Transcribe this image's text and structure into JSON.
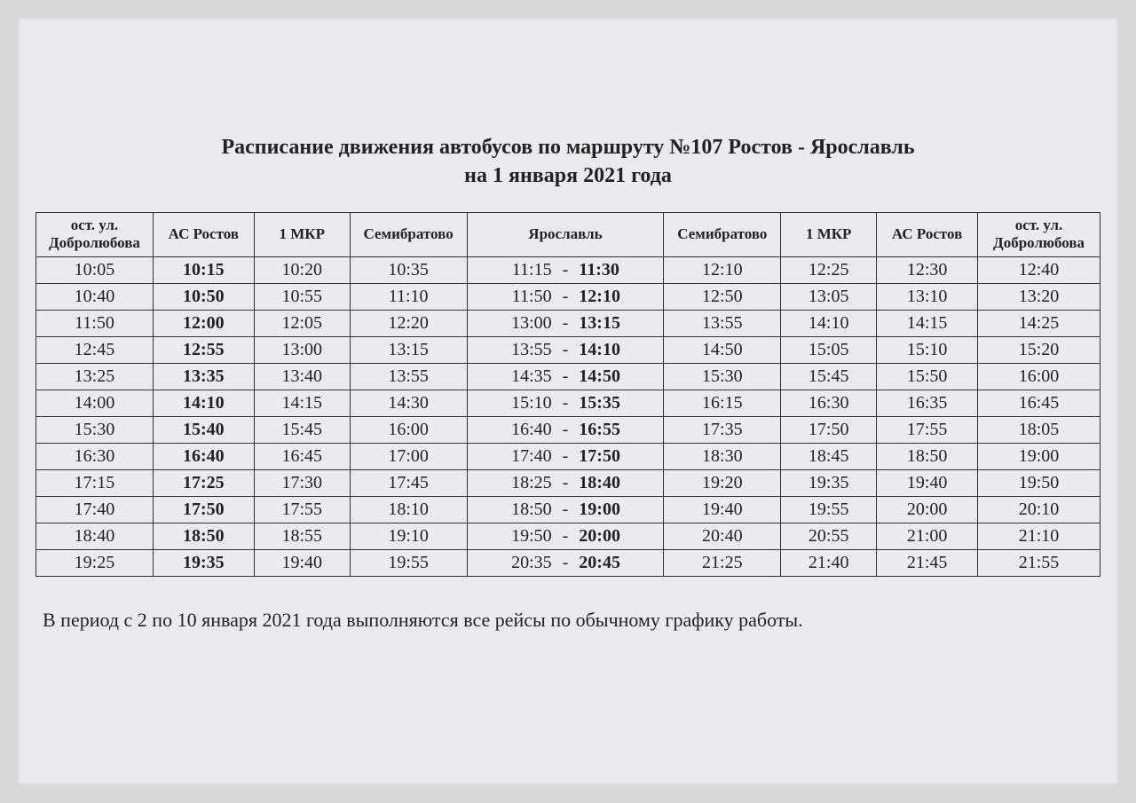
{
  "title_line1": "Расписание движения автобусов по маршруту №107 Ростов - Ярославль",
  "title_line2": "на 1 января 2021 года",
  "columns": [
    "ост. ул. Добролюбова",
    "АС Ростов",
    "1 МКР",
    "Семибратово",
    "Ярославль",
    "Семибратово",
    "1 МКР",
    "АС Ростов",
    "ост. ул. Добролюбова"
  ],
  "rows": [
    {
      "c0": "10:05",
      "c1": "10:15",
      "c2": "10:20",
      "c3": "10:35",
      "y_arr": "11:15",
      "y_dep": "11:30",
      "c5": "12:10",
      "c6": "12:25",
      "c7": "12:30",
      "c8": "12:40"
    },
    {
      "c0": "10:40",
      "c1": "10:50",
      "c2": "10:55",
      "c3": "11:10",
      "y_arr": "11:50",
      "y_dep": "12:10",
      "c5": "12:50",
      "c6": "13:05",
      "c7": "13:10",
      "c8": "13:20"
    },
    {
      "c0": "11:50",
      "c1": "12:00",
      "c2": "12:05",
      "c3": "12:20",
      "y_arr": "13:00",
      "y_dep": "13:15",
      "c5": "13:55",
      "c6": "14:10",
      "c7": "14:15",
      "c8": "14:25"
    },
    {
      "c0": "12:45",
      "c1": "12:55",
      "c2": "13:00",
      "c3": "13:15",
      "y_arr": "13:55",
      "y_dep": "14:10",
      "c5": "14:50",
      "c6": "15:05",
      "c7": "15:10",
      "c8": "15:20"
    },
    {
      "c0": "13:25",
      "c1": "13:35",
      "c2": "13:40",
      "c3": "13:55",
      "y_arr": "14:35",
      "y_dep": "14:50",
      "c5": "15:30",
      "c6": "15:45",
      "c7": "15:50",
      "c8": "16:00"
    },
    {
      "c0": "14:00",
      "c1": "14:10",
      "c2": "14:15",
      "c3": "14:30",
      "y_arr": "15:10",
      "y_dep": "15:35",
      "c5": "16:15",
      "c6": "16:30",
      "c7": "16:35",
      "c8": "16:45"
    },
    {
      "c0": "15:30",
      "c1": "15:40",
      "c2": "15:45",
      "c3": "16:00",
      "y_arr": "16:40",
      "y_dep": "16:55",
      "c5": "17:35",
      "c6": "17:50",
      "c7": "17:55",
      "c8": "18:05"
    },
    {
      "c0": "16:30",
      "c1": "16:40",
      "c2": "16:45",
      "c3": "17:00",
      "y_arr": "17:40",
      "y_dep": "17:50",
      "c5": "18:30",
      "c6": "18:45",
      "c7": "18:50",
      "c8": "19:00"
    },
    {
      "c0": "17:15",
      "c1": "17:25",
      "c2": "17:30",
      "c3": "17:45",
      "y_arr": "18:25",
      "y_dep": "18:40",
      "c5": "19:20",
      "c6": "19:35",
      "c7": "19:40",
      "c8": "19:50"
    },
    {
      "c0": "17:40",
      "c1": "17:50",
      "c2": "17:55",
      "c3": "18:10",
      "y_arr": "18:50",
      "y_dep": "19:00",
      "c5": "19:40",
      "c6": "19:55",
      "c7": "20:00",
      "c8": "20:10"
    },
    {
      "c0": "18:40",
      "c1": "18:50",
      "c2": "18:55",
      "c3": "19:10",
      "y_arr": "19:50",
      "y_dep": "20:00",
      "c5": "20:40",
      "c6": "20:55",
      "c7": "21:00",
      "c8": "21:10"
    },
    {
      "c0": "19:25",
      "c1": "19:35",
      "c2": "19:40",
      "c3": "19:55",
      "y_arr": "20:35",
      "y_dep": "20:45",
      "c5": "21:25",
      "c6": "21:40",
      "c7": "21:45",
      "c8": "21:55"
    }
  ],
  "footnote": "В период с 2 по 10 января 2021 года выполняются все рейсы по обычному графику работы.",
  "style": {
    "bg_outer": "#d8d8d8",
    "bg_page": "#ebebed",
    "border_color": "#333333",
    "text_color": "#222222",
    "title_fontsize": 24,
    "cell_fontsize": 20,
    "header_fontsize": 17,
    "footnote_fontsize": 22,
    "bold_columns": [
      1
    ],
    "yaroslavl_dep_bold": true
  }
}
